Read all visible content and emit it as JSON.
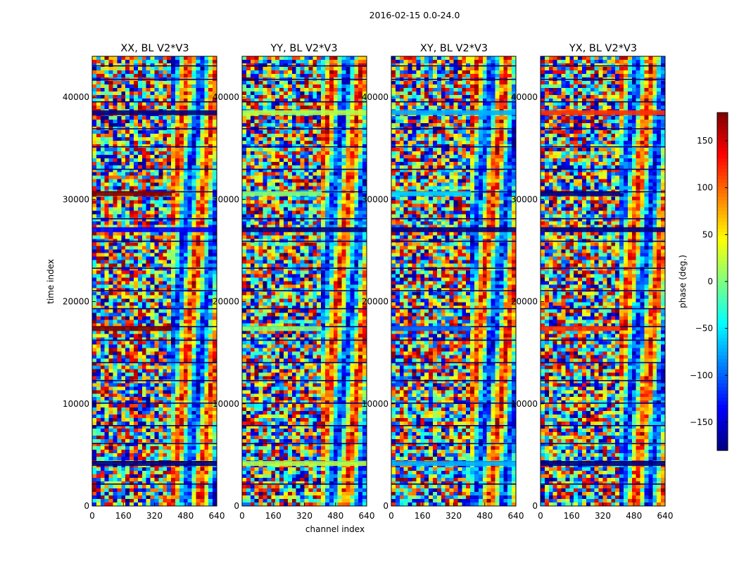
{
  "chart_data": {
    "type": "heatmap",
    "title": "2016-02-15 0.0-24.0",
    "xlabel": "channel index",
    "ylabel": "time index",
    "xlim": [
      0,
      640
    ],
    "ylim": [
      0,
      44000
    ],
    "x_ticks": [
      "0",
      "160",
      "320",
      "480",
      "640"
    ],
    "y_ticks": [
      "0",
      "10000",
      "20000",
      "30000",
      "40000"
    ],
    "colormap": "jet",
    "panels": [
      {
        "title": "XX, BL V2*V3",
        "band_colors": [
          "#00007f",
          "#7f0000",
          "#0000ff",
          "#7f0000",
          "#00007f"
        ]
      },
      {
        "title": "YY, BL V2*V3",
        "band_colors": [
          "#b5ff42",
          "#7dff7a",
          "#00007f",
          "#7dff7a",
          "#b5ff42"
        ]
      },
      {
        "title": "XY, BL V2*V3",
        "band_colors": [
          "#00b0ff",
          "#00d4ff",
          "#00007f",
          "#0060ff",
          "#00b0ff"
        ]
      },
      {
        "title": "YX, BL V2*V3",
        "band_colors": [
          "#ff3000",
          "#00007f",
          "#00007f",
          "#ff3000",
          "#00007f"
        ]
      }
    ],
    "colorbar": {
      "label": "phase (deg.)",
      "range": [
        -180,
        180
      ],
      "ticks": [
        "150",
        "100",
        "50",
        "0",
        "−50",
        "−100",
        "−150"
      ],
      "tick_values": [
        150,
        100,
        50,
        0,
        -50,
        -100,
        -150
      ]
    }
  }
}
